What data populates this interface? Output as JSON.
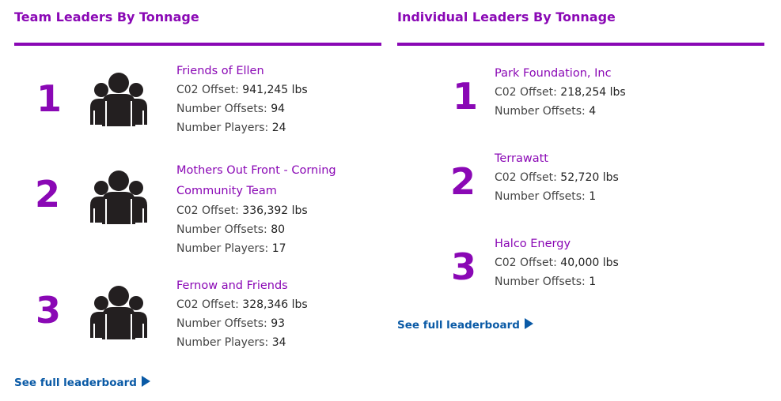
{
  "team": {
    "title": "Team Leaders By Tonnage",
    "more_label": "See full leaderboard",
    "entries": [
      {
        "rank": "1",
        "name": "Friends of Ellen",
        "co2_label": "C02 Offset:",
        "co2": "941,245 lbs",
        "offsets_label": "Number Offsets:",
        "offsets": "94",
        "players_label": "Number Players:",
        "players": "24"
      },
      {
        "rank": "2",
        "name_line1": "Mothers Out Front - Corning",
        "name_line2": "Community Team",
        "co2_label": "C02 Offset:",
        "co2": "336,392 lbs",
        "offsets_label": "Number Offsets:",
        "offsets": "80",
        "players_label": "Number Players:",
        "players": "17"
      },
      {
        "rank": "3",
        "name": "Fernow and Friends",
        "co2_label": "C02 Offset:",
        "co2": "328,346 lbs",
        "offsets_label": "Number Offsets:",
        "offsets": "93",
        "players_label": "Number Players:",
        "players": "34"
      }
    ]
  },
  "individual": {
    "title": "Individual Leaders By Tonnage",
    "more_label": "See full leaderboard",
    "entries": [
      {
        "rank": "1",
        "name": "Park Foundation, Inc",
        "co2_label": "C02 Offset:",
        "co2": "218,254 lbs",
        "offsets_label": "Number Offsets:",
        "offsets": "4"
      },
      {
        "rank": "2",
        "name": "Terrawatt",
        "co2_label": "C02 Offset:",
        "co2": "52,720 lbs",
        "offsets_label": "Number Offsets:",
        "offsets": "1"
      },
      {
        "rank": "3",
        "name": "Halco Energy",
        "co2_label": "C02 Offset:",
        "co2": "40,000 lbs",
        "offsets_label": "Number Offsets:",
        "offsets": "1"
      }
    ]
  },
  "colors": {
    "accent": "#8a08b5",
    "link": "#0a5aa6",
    "icon": "#231f20"
  }
}
